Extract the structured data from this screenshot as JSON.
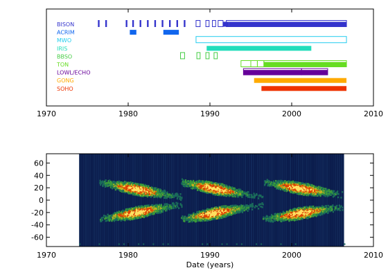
{
  "chart_data": [
    {
      "type": "timeline",
      "xlim": [
        1970,
        2010
      ],
      "x_ticks": [
        "1970",
        "1980",
        "1990",
        "2000",
        "2010"
      ],
      "series": [
        {
          "name": "BISON",
          "color": "#3333cc",
          "segments": [
            [
              1976.3,
              1976.5
            ],
            [
              1977.2,
              1977.4
            ],
            [
              1979.7,
              1979.9
            ],
            [
              1980.5,
              1980.7
            ],
            [
              1981.4,
              1981.6
            ],
            [
              1982.3,
              1982.5
            ],
            [
              1983.2,
              1983.4
            ],
            [
              1984.1,
              1984.3
            ],
            [
              1985.0,
              1985.2
            ],
            [
              1985.9,
              1986.1
            ],
            [
              1986.8,
              1987.0
            ]
          ],
          "outline": [
            [
              1988.3,
              1988.8
            ],
            [
              1989.5,
              1989.9
            ],
            [
              1990.3,
              1990.7
            ],
            [
              1991.0,
              1991.6
            ],
            [
              1992.0,
              2006.7
            ]
          ],
          "filled": [
            [
              1991.6,
              1992.3
            ],
            [
              1992.3,
              2006.7
            ]
          ]
        },
        {
          "name": "ACRIM",
          "color": "#1166ee",
          "filled": [
            [
              1980.2,
              1981.0
            ],
            [
              1984.3,
              1986.2
            ]
          ]
        },
        {
          "name": "MWO",
          "color": "#22ccee",
          "outline": [
            [
              1988.3,
              2006.7
            ]
          ]
        },
        {
          "name": "IRIS",
          "color": "#22ddbb",
          "filled": [
            [
              1989.6,
              2002.4
            ]
          ]
        },
        {
          "name": "BBSO",
          "color": "#44cc44",
          "outline": [
            [
              1986.4,
              1986.9
            ],
            [
              1988.4,
              1988.8
            ],
            [
              1989.5,
              1989.9
            ],
            [
              1990.5,
              1990.9
            ]
          ]
        },
        {
          "name": "TON",
          "color": "#66dd22",
          "outline": [
            [
              1993.8,
              1995.0
            ],
            [
              1995.0,
              1995.8
            ],
            [
              1995.8,
              1996.6
            ],
            [
              1996.6,
              2006.7
            ]
          ],
          "filled": [
            [
              1996.6,
              2006.7
            ]
          ]
        },
        {
          "name": "LOWL/ECHO",
          "color": "#660099",
          "outline": [
            [
              1994.1,
              2001.2
            ],
            [
              2001.2,
              2004.4
            ]
          ],
          "filled": [
            [
              1994.1,
              2004.4
            ]
          ]
        },
        {
          "name": "GONG",
          "color": "#ffaa00",
          "filled": [
            [
              1995.4,
              2006.7
            ]
          ]
        },
        {
          "name": "SOHO",
          "color": "#ee3300",
          "filled": [
            [
              1996.3,
              2006.7
            ]
          ]
        }
      ]
    },
    {
      "type": "heatmap",
      "xlabel": "Date (years)",
      "xlim": [
        1970,
        2010
      ],
      "ylim": [
        -75,
        75
      ],
      "x_ticks": [
        "1970",
        "1980",
        "1990",
        "2000",
        "2010"
      ],
      "y_ticks": [
        "60",
        "40",
        "20",
        "0",
        "-20",
        "-40",
        "-60"
      ],
      "data_start": 1974.0,
      "data_end": 2006.4,
      "cycles": [
        {
          "start": 1976.5,
          "end": 1986.5,
          "peak": 1981.0
        },
        {
          "start": 1986.5,
          "end": 1996.5,
          "peak": 1990.5
        },
        {
          "start": 1996.5,
          "end": 2008.0,
          "peak": 2001.0
        }
      ],
      "colors": [
        "#0a1a4a",
        "#1a6a5a",
        "#3a9a3a",
        "#c8b020",
        "#e04000",
        "#ffe060"
      ]
    }
  ]
}
